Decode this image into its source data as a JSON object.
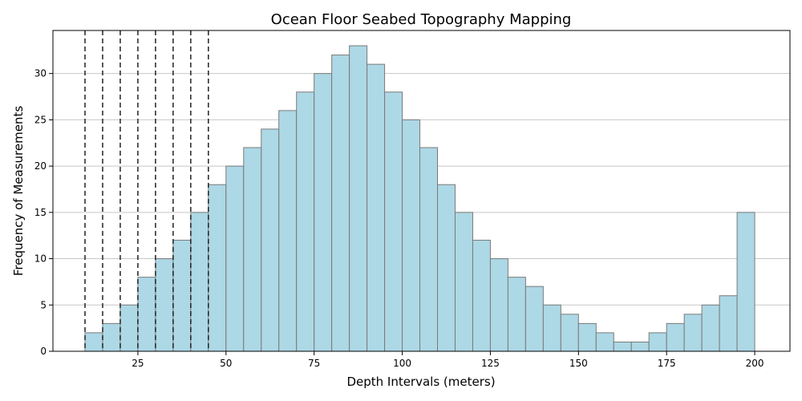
{
  "chart_data": {
    "type": "bar",
    "title": "Ocean Floor Seabed Topography Mapping",
    "xlabel": "Depth Intervals (meters)",
    "ylabel": "Frequency of Measurements",
    "xlim": [
      0.9,
      210
    ],
    "ylim": [
      0,
      34.65
    ],
    "x_ticks": [
      25,
      50,
      75,
      100,
      125,
      150,
      175,
      200
    ],
    "y_ticks": [
      0,
      5,
      10,
      15,
      20,
      25,
      30
    ],
    "bin_width": 5,
    "bin_edges": [
      10,
      15,
      20,
      25,
      30,
      35,
      40,
      45,
      50,
      55,
      60,
      65,
      70,
      75,
      80,
      85,
      90,
      95,
      100,
      105,
      110,
      115,
      120,
      125,
      130,
      135,
      140,
      145,
      150,
      155,
      160,
      165,
      170,
      175,
      180,
      185,
      190,
      195,
      200
    ],
    "values": [
      2,
      3,
      5,
      8,
      10,
      12,
      15,
      18,
      20,
      22,
      24,
      26,
      28,
      30,
      32,
      33,
      31,
      28,
      25,
      22,
      18,
      15,
      12,
      10,
      8,
      7,
      5,
      4,
      3,
      2,
      1,
      1,
      2,
      3,
      4,
      5,
      6,
      15
    ],
    "vlines": [
      10,
      15,
      20,
      25,
      30,
      35,
      40,
      45
    ],
    "grid": "y",
    "colors": {
      "bar_fill": "#add8e6",
      "bar_edge": "#7a7a7a",
      "grid": "#c8c8c8",
      "vline": "#222222"
    }
  }
}
